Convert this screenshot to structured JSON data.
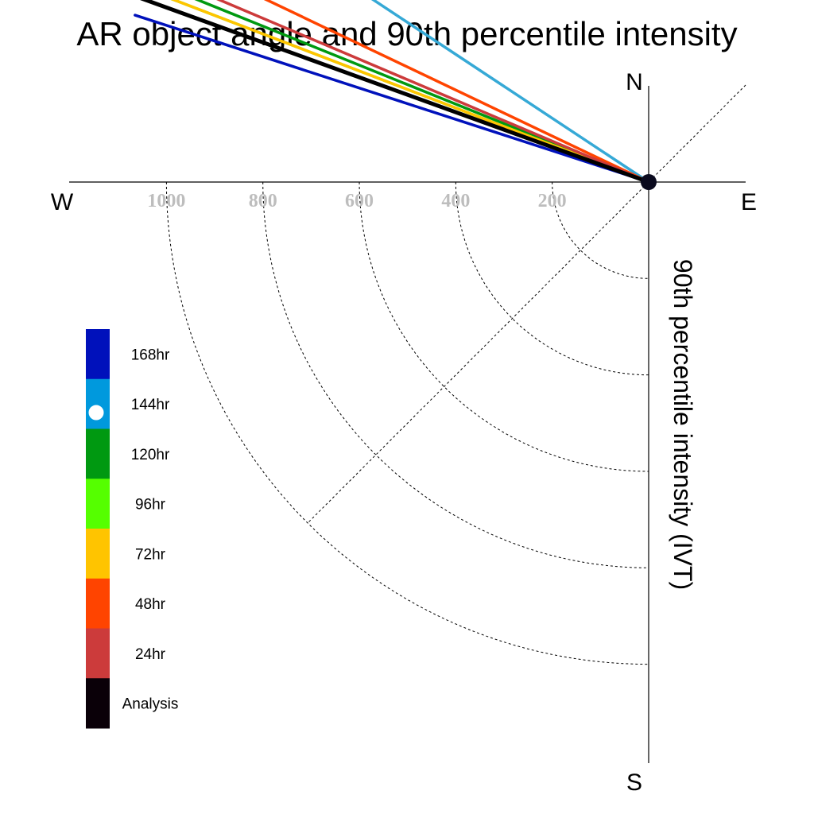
{
  "chart_data": {
    "type": "polar-vector",
    "title": "AR object angle and 90th percentile intensity",
    "ylabel": "90th percentile intensity (IVT)",
    "compass": {
      "north": "N",
      "south": "S",
      "east": "E",
      "west": "W"
    },
    "radial_ticks": [
      "200",
      "400",
      "600",
      "800",
      "1000"
    ],
    "radial_range": [
      0,
      1200
    ],
    "grid": true,
    "legend_position": "left",
    "legend": [
      {
        "label": "168hr",
        "color": "#0011bb"
      },
      {
        "label": "144hr",
        "color": "#0099dd"
      },
      {
        "label": "120hr",
        "color": "#009911"
      },
      {
        "label": "96hr",
        "color": "#55ff00"
      },
      {
        "label": "72hr",
        "color": "#ffc400"
      },
      {
        "label": "48hr",
        "color": "#ff4400"
      },
      {
        "label": "24hr",
        "color": "#cc3b3b"
      },
      {
        "label": "Analysis",
        "color": "#0a0008"
      }
    ],
    "series": [
      {
        "name": "168hr",
        "angle_deg": -108,
        "intensity": 1120,
        "color": "#0011bb"
      },
      {
        "name": "144hr",
        "angle_deg": -123.5,
        "intensity": 887,
        "color": "#36a9d6"
      },
      {
        "name": "120hr",
        "angle_deg": -112,
        "intensity": 1080,
        "color": "#009911"
      },
      {
        "name": "96hr",
        "angle_deg": -111,
        "intensity": 1104,
        "color": "#55ff00"
      },
      {
        "name": "72hr",
        "angle_deg": -111,
        "intensity": 1130,
        "color": "#ffc400"
      },
      {
        "name": "48hr",
        "angle_deg": -115.5,
        "intensity": 1072,
        "color": "#ff4400"
      },
      {
        "name": "24hr",
        "angle_deg": -113,
        "intensity": 1100,
        "color": "#cc3b3b"
      },
      {
        "name": "Analysis",
        "angle_deg": -109.9,
        "intensity": 1168,
        "color": "#000000"
      }
    ]
  }
}
